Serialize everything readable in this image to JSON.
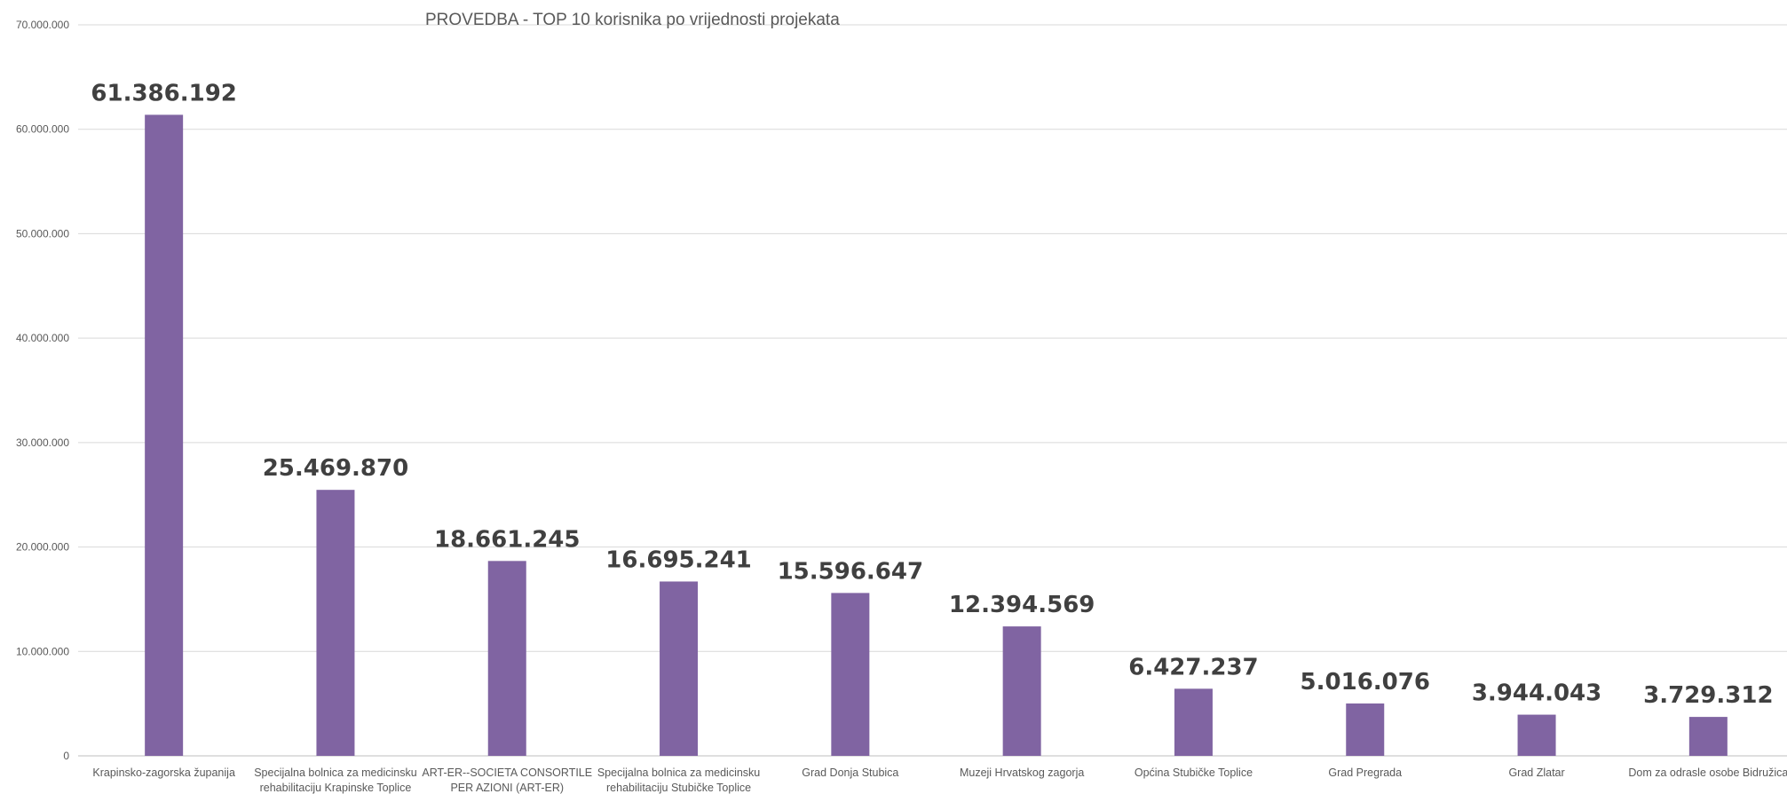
{
  "chart_data": {
    "type": "bar",
    "title": "PROVEDBA - TOP 10 korisnika po vrijednosti projekata",
    "xlabel": "",
    "ylabel": "",
    "categories": [
      [
        "Krapinsko-zagorska županija"
      ],
      [
        "Specijalna bolnica za medicinsku",
        "rehabilitaciju Krapinske Toplice"
      ],
      [
        "ART-ER--SOCIETA CONSORTILE",
        "PER AZIONI (ART-ER)"
      ],
      [
        "Specijalna bolnica za medicinsku",
        "rehabilitaciju Stubičke Toplice"
      ],
      [
        "Grad Donja Stubica"
      ],
      [
        "Muzeji Hrvatskog zagorja"
      ],
      [
        "Općina Stubičke Toplice"
      ],
      [
        "Grad Pregrada"
      ],
      [
        "Grad Zlatar"
      ],
      [
        "Dom za odrasle osobe Bidružica"
      ]
    ],
    "values": [
      61386192,
      25469870,
      18661245,
      16695241,
      15596647,
      12394569,
      6427237,
      5016076,
      3944043,
      3729312
    ],
    "data_labels": [
      "61.386.192",
      "25.469.870",
      "18.661.245",
      "16.695.241",
      "15.596.647",
      "12.394.569",
      "6.427.237",
      "5.016.076",
      "3.944.043",
      "3.729.312"
    ],
    "ylim": [
      0,
      70000000
    ],
    "yticks": [
      0,
      10000000,
      20000000,
      30000000,
      40000000,
      50000000,
      60000000,
      70000000
    ],
    "ytick_labels": [
      "0",
      "10.000.000",
      "20.000.000",
      "30.000.000",
      "40.000.000",
      "50.000.000",
      "60.000.000",
      "70.000.000"
    ],
    "grid": true,
    "legend": "none",
    "bar_color": "#8064a2",
    "grid_color": "#d9d9d9",
    "text_color": "#595959",
    "label_color": "#404040"
  }
}
